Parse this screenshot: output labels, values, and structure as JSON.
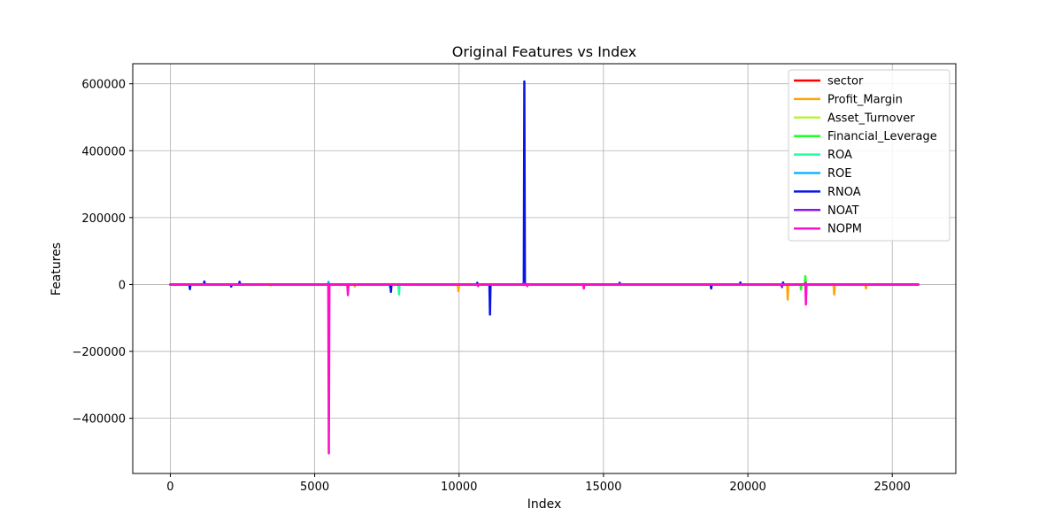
{
  "chart_data": {
    "type": "line",
    "title": "Original Features vs Index",
    "xlabel": "Index",
    "ylabel": "Features",
    "xlim": [
      -1300,
      27200
    ],
    "ylim": [
      -565000,
      660000
    ],
    "x_ticks": [
      0,
      5000,
      10000,
      15000,
      20000,
      25000
    ],
    "x_tick_labels": [
      "0",
      "5000",
      "10000",
      "15000",
      "20000",
      "25000"
    ],
    "y_ticks": [
      -400000,
      -200000,
      0,
      200000,
      400000,
      600000
    ],
    "y_tick_labels": [
      "−400000",
      "−200000",
      "0",
      "200000",
      "400000",
      "600000"
    ],
    "grid": true,
    "legend_position": "top-right",
    "x_range": [
      0,
      25900
    ],
    "baseline": 0,
    "series": [
      {
        "name": "sector",
        "color": "#ff0000",
        "spikes": []
      },
      {
        "name": "Profit_Margin",
        "color": "#ffa500",
        "spikes": [
          [
            9980,
            -20000
          ],
          [
            21380,
            -45000
          ],
          [
            22990,
            -30000
          ],
          [
            24090,
            -12000
          ],
          [
            6390,
            -6000
          ]
        ]
      },
      {
        "name": "Asset_Turnover",
        "color": "#b8f53a",
        "spikes": [
          [
            22000,
            12000
          ],
          [
            3480,
            -4000
          ]
        ]
      },
      {
        "name": "Financial_Leverage",
        "color": "#1fff2a",
        "spikes": [
          [
            21840,
            -15000
          ],
          [
            21990,
            25000
          ]
        ]
      },
      {
        "name": "ROA",
        "color": "#1fffa0",
        "spikes": [
          [
            7920,
            -30000
          ]
        ]
      },
      {
        "name": "ROE",
        "color": "#13b4ff",
        "spikes": [
          [
            5480,
            8000
          ],
          [
            7610,
            -8000
          ]
        ]
      },
      {
        "name": "RNOA",
        "color": "#0a14e6",
        "spikes": [
          [
            12260,
            607000
          ],
          [
            11070,
            -90000
          ],
          [
            7640,
            -22000
          ],
          [
            680,
            -14000
          ],
          [
            18730,
            -12000
          ],
          [
            1180,
            9000
          ],
          [
            2400,
            8000
          ],
          [
            2110,
            -6000
          ],
          [
            10630,
            5000
          ],
          [
            15560,
            5000
          ],
          [
            19740,
            6000
          ],
          [
            21220,
            6000
          ]
        ]
      },
      {
        "name": "NOAT",
        "color": "#8a14f0",
        "spikes": [
          [
            21180,
            -8000
          ],
          [
            12230,
            5000
          ]
        ]
      },
      {
        "name": "NOPM",
        "color": "#ff0fc8",
        "spikes": [
          [
            5490,
            -505000
          ],
          [
            6150,
            -32000
          ],
          [
            22010,
            -60000
          ],
          [
            14320,
            -12000
          ],
          [
            10660,
            -5000
          ],
          [
            12360,
            -5000
          ],
          [
            22000,
            5000
          ]
        ]
      }
    ]
  }
}
